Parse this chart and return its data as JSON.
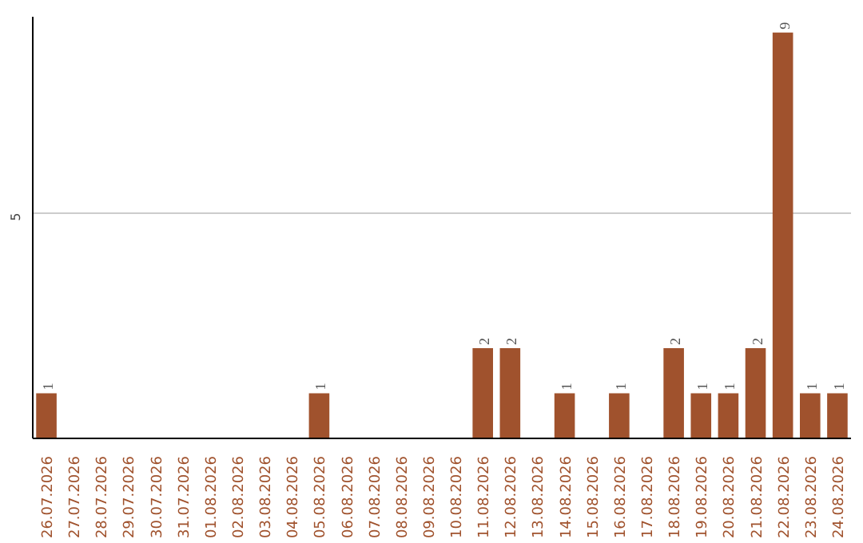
{
  "chart_data": {
    "type": "bar",
    "categories": [
      "26.07.2026",
      "27.07.2026",
      "28.07.2026",
      "29.07.2026",
      "30.07.2026",
      "31.07.2026",
      "01.08.2026",
      "02.08.2026",
      "03.08.2026",
      "04.08.2026",
      "05.08.2026",
      "06.08.2026",
      "07.08.2026",
      "08.08.2026",
      "09.08.2026",
      "10.08.2026",
      "11.08.2026",
      "12.08.2026",
      "13.08.2026",
      "14.08.2026",
      "15.08.2026",
      "16.08.2026",
      "17.08.2026",
      "18.08.2026",
      "19.08.2026",
      "20.08.2026",
      "21.08.2026",
      "22.08.2026",
      "23.08.2026",
      "24.08.2026"
    ],
    "values": [
      1,
      0,
      0,
      0,
      0,
      0,
      0,
      0,
      0,
      0,
      1,
      0,
      0,
      0,
      0,
      0,
      2,
      2,
      0,
      1,
      0,
      1,
      0,
      2,
      1,
      1,
      2,
      9,
      1,
      1
    ],
    "value_labels": [
      "1",
      null,
      null,
      null,
      null,
      null,
      null,
      null,
      null,
      null,
      "1",
      null,
      null,
      null,
      null,
      null,
      "2",
      "2",
      null,
      "1",
      null,
      "1",
      null,
      "2",
      "1",
      "1",
      "2",
      "9",
      "1",
      "1"
    ],
    "color": "#a0522d",
    "ylim": [
      0,
      9.35
    ],
    "yticks": [
      5
    ],
    "grid": "y"
  }
}
